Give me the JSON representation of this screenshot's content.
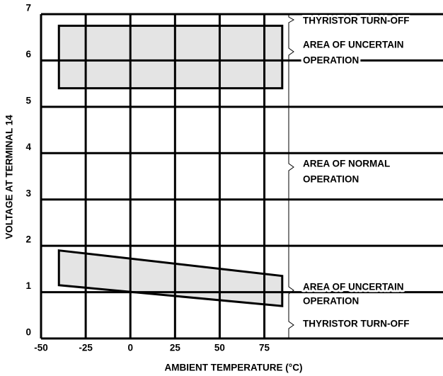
{
  "chart_data": {
    "type": "polygon",
    "xlabel": "AMBIENT TEMPERATURE (°C)",
    "ylabel": "VOLTAGE AT TERMINAL 14",
    "xlim": [
      -50,
      175
    ],
    "ylim": [
      0,
      7
    ],
    "xticks": [
      -50,
      -25,
      0,
      25,
      50,
      75
    ],
    "yticks": [
      0,
      1,
      2,
      3,
      4,
      5,
      6,
      7
    ],
    "grid": true,
    "color": "#e4e4e4",
    "shapes": [
      {
        "x": [
          -40,
          85,
          85,
          -40
        ],
        "y": [
          6.75,
          6.75,
          5.4,
          5.4
        ]
      },
      {
        "x": [
          -40,
          85,
          85,
          -40
        ],
        "y": [
          1.9,
          1.35,
          0.7,
          1.15
        ]
      }
    ],
    "annotations": [
      [
        "THYRISTOR TURN-OFF"
      ],
      [
        "AREA OF UNCERTAIN",
        "OPERATION"
      ],
      [
        "AREA OF NORMAL",
        "OPERATION"
      ],
      [
        "AREA OF UNCERTAIN",
        "OPERATION"
      ],
      [
        "THYRISTOR TURN-OFF"
      ]
    ]
  }
}
